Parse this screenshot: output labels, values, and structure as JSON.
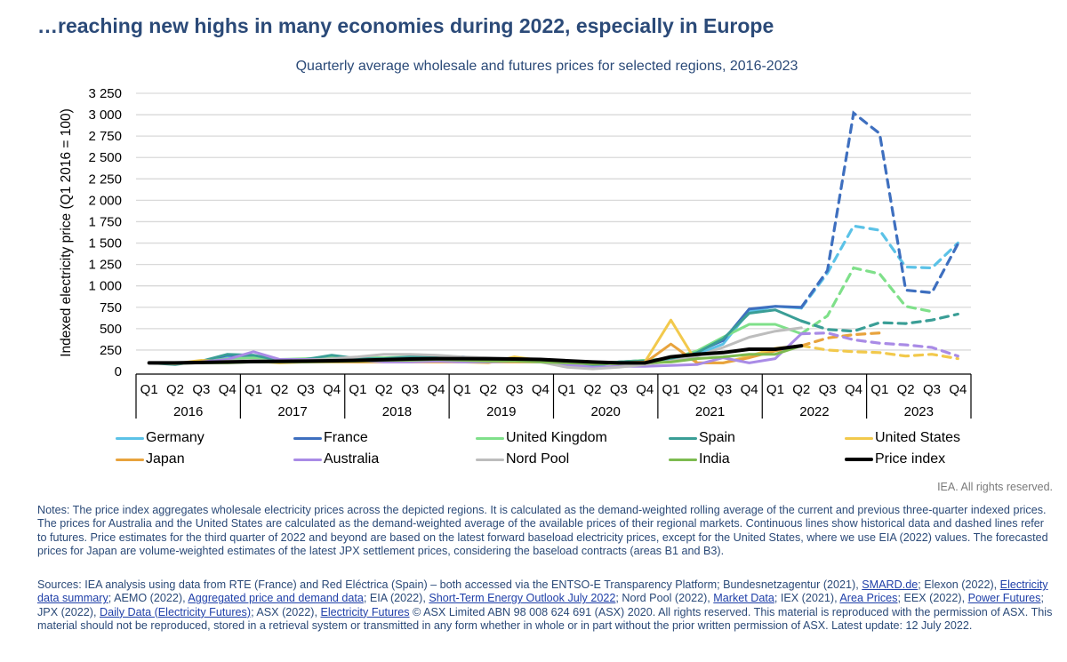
{
  "headline": "…reaching new highs in many economies during 2022, especially in Europe",
  "rights": "IEA. All rights reserved.",
  "notes": "Notes: The price index aggregates wholesale electricity prices across the depicted regions. It is calculated as the demand-weighted rolling average of the current and previous three-quarter indexed prices. The prices for Australia and the United States are calculated as the demand-weighted average of the available prices of their regional markets. Continuous lines show historical data and dashed lines refer to futures. Price estimates for the third quarter of 2022 and beyond are based on the latest forward baseload electricity prices, except for the United States, where we use EIA (2022) values. The forecasted prices for Japan are volume-weighted estimates of the latest JPX settlement prices, considering the baseload contracts (areas B1 and B3).",
  "sources": {
    "parts": [
      {
        "text": "Sources: IEA analysis using data from RTE (France) and Red Eléctrica (Spain) – both accessed via the ENTSO-E Transparency Platform; Bundesnetzagentur (2021), "
      },
      {
        "link": "SMARD.de"
      },
      {
        "text": "; Elexon (2022), "
      },
      {
        "link": "Electricity data summary"
      },
      {
        "text": "; AEMO (2022), "
      },
      {
        "link": "Aggregated price and demand data"
      },
      {
        "text": "; EIA (2022), "
      },
      {
        "link": "Short-Term Energy Outlook July 2022"
      },
      {
        "text": "; Nord Pool (2022), "
      },
      {
        "link": "Market Data"
      },
      {
        "text": "; IEX (2021), "
      },
      {
        "link": "Area Prices"
      },
      {
        "text": "; EEX (2022), "
      },
      {
        "link": "Power Futures"
      },
      {
        "text": "; JPX (2022), "
      },
      {
        "link": "Daily Data (Electricity Futures)"
      },
      {
        "text": "; ASX (2022), "
      },
      {
        "link": "Electricity Futures"
      },
      {
        "text": " © ASX Limited ABN 98 008 624 691 (ASX) 2020. All rights reserved. This material is reproduced with the permission of ASX. This material should not be reproduced, stored in a retrieval system or transmitted in any form whether in whole or in part without the prior written permission of ASX. Latest update: 12 July 2022."
      }
    ]
  },
  "chart_data": {
    "type": "line",
    "title": "Quarterly average wholesale and futures prices for selected regions, 2016-2023",
    "xlabel": "",
    "ylabel": "Indexed electricity price (Q1 2016 = 100)",
    "ylim": [
      0,
      3250
    ],
    "yticks": [
      0,
      250,
      500,
      750,
      1000,
      1250,
      1500,
      1750,
      2000,
      2250,
      2500,
      2750,
      3000,
      3250
    ],
    "ytick_labels": [
      "0",
      "250",
      "500",
      "750",
      "1 000",
      "1 250",
      "1 500",
      "1 750",
      "2 000",
      "2 250",
      "2 500",
      "2 750",
      "3 000",
      "3 250"
    ],
    "grid": true,
    "legend_position": "bottom",
    "quarters": [
      "Q1",
      "Q2",
      "Q3",
      "Q4"
    ],
    "years": [
      "2016",
      "2017",
      "2018",
      "2019",
      "2020",
      "2021",
      "2022",
      "2023"
    ],
    "historical_through_index": 25,
    "note": "Index 0 = Q1 2016 ... index 31 = Q4 2023. Values after historical_through_index are futures (dashed).",
    "series": [
      {
        "name": "Germany",
        "color": "#5bc2e7",
        "values": [
          100,
          90,
          105,
          180,
          170,
          130,
          140,
          160,
          150,
          150,
          160,
          170,
          170,
          140,
          150,
          130,
          110,
          90,
          100,
          120,
          140,
          200,
          320,
          700,
          760,
          740,
          1150,
          1700,
          1650,
          1220,
          1210,
          1500
        ]
      },
      {
        "name": "France",
        "color": "#3e6fbf",
        "values": [
          100,
          90,
          110,
          190,
          175,
          130,
          140,
          165,
          155,
          150,
          165,
          175,
          170,
          140,
          150,
          130,
          100,
          85,
          110,
          130,
          150,
          230,
          360,
          730,
          760,
          750,
          1180,
          3020,
          2780,
          950,
          920,
          1490
        ]
      },
      {
        "name": "United Kingdom",
        "color": "#7fe08a",
        "values": [
          100,
          95,
          110,
          150,
          160,
          140,
          150,
          160,
          160,
          160,
          170,
          180,
          160,
          140,
          140,
          130,
          110,
          90,
          110,
          130,
          150,
          240,
          400,
          550,
          550,
          440,
          650,
          1210,
          1140,
          760,
          700,
          null
        ]
      },
      {
        "name": "Spain",
        "color": "#3a9e96",
        "values": [
          100,
          80,
          120,
          200,
          190,
          130,
          140,
          190,
          150,
          150,
          170,
          180,
          150,
          130,
          130,
          120,
          80,
          60,
          110,
          120,
          130,
          220,
          380,
          680,
          720,
          590,
          490,
          470,
          570,
          560,
          600,
          670
        ]
      },
      {
        "name": "United States",
        "color": "#f2c94c",
        "values": [
          100,
          90,
          130,
          110,
          120,
          100,
          110,
          120,
          110,
          120,
          110,
          120,
          110,
          100,
          170,
          130,
          100,
          90,
          100,
          110,
          600,
          100,
          100,
          180,
          270,
          300,
          250,
          230,
          220,
          180,
          200,
          150
        ]
      },
      {
        "name": "Japan",
        "color": "#e8a33d",
        "values": [
          100,
          100,
          110,
          110,
          110,
          110,
          110,
          110,
          110,
          110,
          110,
          110,
          110,
          110,
          110,
          110,
          100,
          100,
          100,
          100,
          320,
          100,
          100,
          160,
          240,
          300,
          390,
          430,
          450,
          null,
          null,
          null
        ]
      },
      {
        "name": "Australia",
        "color": "#a98be6",
        "values": [
          100,
          100,
          110,
          140,
          230,
          140,
          140,
          140,
          130,
          110,
          110,
          120,
          110,
          110,
          120,
          110,
          80,
          50,
          60,
          60,
          70,
          80,
          160,
          100,
          150,
          440,
          450,
          370,
          330,
          310,
          280,
          180
        ]
      },
      {
        "name": "Nord Pool",
        "color": "#bdbdbd",
        "values": [
          100,
          90,
          100,
          120,
          130,
          120,
          130,
          150,
          170,
          200,
          200,
          190,
          170,
          160,
          150,
          110,
          50,
          30,
          50,
          80,
          120,
          180,
          280,
          400,
          470,
          510,
          null,
          null,
          null,
          null,
          null,
          null
        ]
      },
      {
        "name": "India",
        "color": "#7dbb50",
        "values": [
          100,
          95,
          100,
          100,
          110,
          110,
          110,
          115,
          120,
          130,
          130,
          140,
          130,
          120,
          120,
          110,
          100,
          90,
          90,
          100,
          110,
          150,
          170,
          200,
          200,
          300,
          null,
          null,
          null,
          null,
          null,
          null
        ]
      },
      {
        "name": "Price index",
        "color": "#000000",
        "values": [
          100,
          100,
          105,
          110,
          115,
          118,
          120,
          125,
          130,
          138,
          145,
          150,
          150,
          148,
          145,
          140,
          125,
          110,
          100,
          100,
          170,
          200,
          220,
          260,
          260,
          300,
          null,
          null,
          null,
          null,
          null,
          null
        ]
      }
    ]
  }
}
